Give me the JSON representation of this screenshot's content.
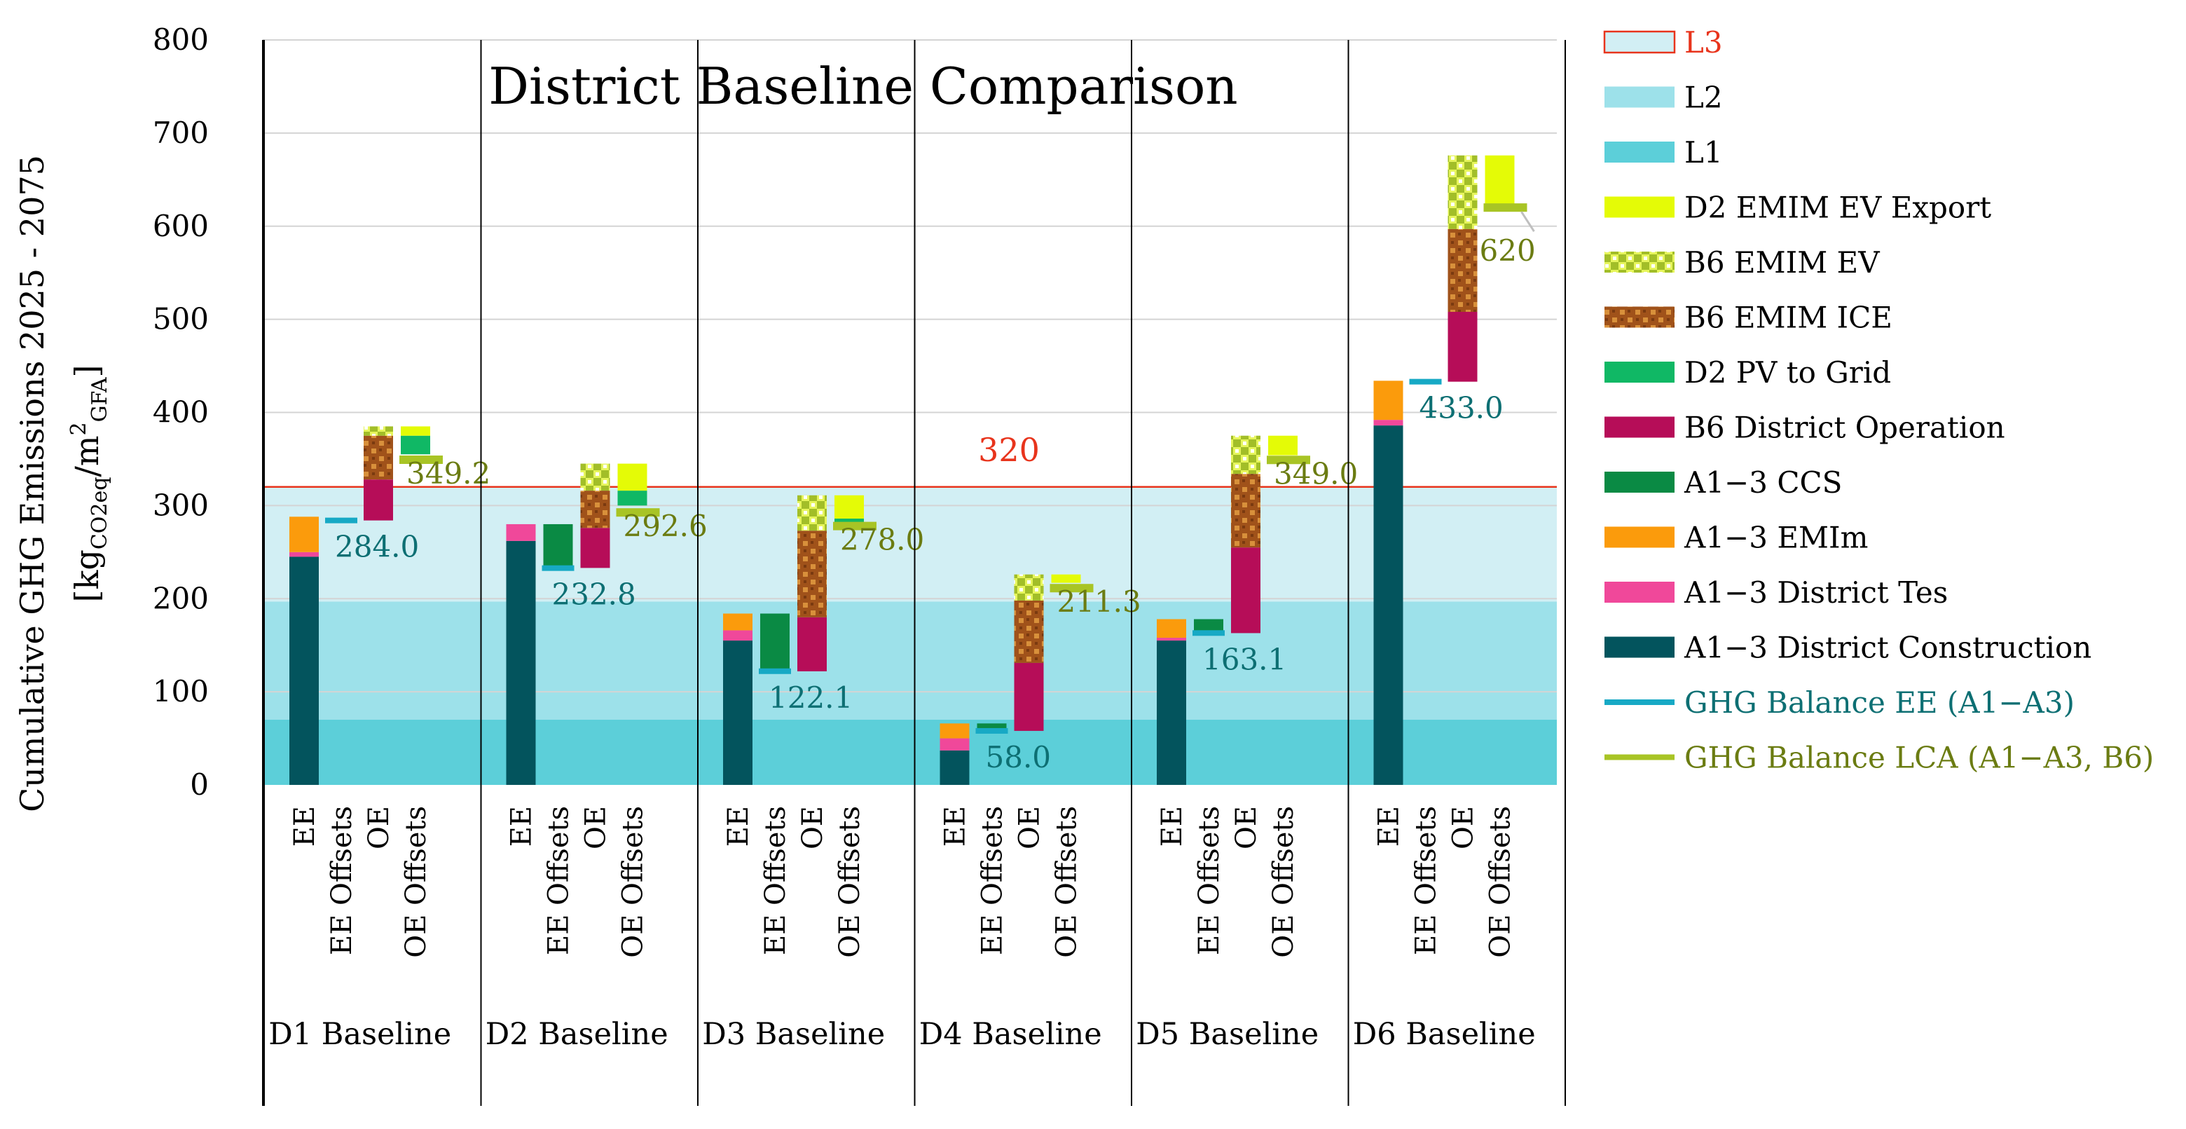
{
  "chart_data": {
    "type": "bar",
    "subtype": "stacked-waterfall",
    "title": "District Baseline Comparison",
    "ylabel_main": "Cumulative GHG Emissions 2025 - 2075",
    "ylabel_unit": {
      "open": "[kg",
      "sub1": "CO2eq",
      "mid": "/m",
      "sup": "2",
      "sub2": "GFA",
      "close": "]"
    },
    "ylim": [
      0,
      800
    ],
    "yticks": [
      0,
      100,
      200,
      300,
      400,
      500,
      600,
      700,
      800
    ],
    "bands": [
      {
        "name": "L1",
        "from": 0,
        "to": 70,
        "color": "#5ccfd9"
      },
      {
        "name": "L2",
        "from": 70,
        "to": 197,
        "color": "#9de1ea"
      },
      {
        "name": "L3",
        "from": 197,
        "to": 320,
        "color": "#d2eff4"
      }
    ],
    "threshold": {
      "value": 320,
      "label": "320",
      "color": "#e8341c"
    },
    "bar_labels": [
      "EE",
      "EE Offsets",
      "OE",
      "OE Offsets"
    ],
    "districts": [
      {
        "name": "D1 Baseline",
        "ee": [
          {
            "cat": "construction",
            "from": 0,
            "to": 245
          },
          {
            "cat": "tes",
            "from": 245,
            "to": 250
          },
          {
            "cat": "emim",
            "from": 250,
            "to": 288
          }
        ],
        "ee_offsets": [],
        "ghg_ee": {
          "value": 284,
          "label": "284.0"
        },
        "oe": [
          {
            "cat": "operation",
            "from": 284,
            "to": 328
          },
          {
            "cat": "ice",
            "from": 328,
            "to": 375
          },
          {
            "cat": "ev",
            "from": 375,
            "to": 385
          }
        ],
        "oe_offsets": [
          {
            "cat": "pv",
            "from": 355,
            "to": 375
          },
          {
            "cat": "d2ev",
            "from": 375,
            "to": 385
          }
        ],
        "ghg_lca": {
          "value": 349.2,
          "label": "349.2"
        }
      },
      {
        "name": "D2 Baseline",
        "ee": [
          {
            "cat": "construction",
            "from": 0,
            "to": 262
          },
          {
            "cat": "tes",
            "from": 262,
            "to": 280
          }
        ],
        "ee_offsets": [
          {
            "cat": "ccs",
            "from": 235,
            "to": 280
          }
        ],
        "ghg_ee": {
          "value": 232.8,
          "label": "232.8"
        },
        "oe": [
          {
            "cat": "operation",
            "from": 233,
            "to": 276
          },
          {
            "cat": "ice",
            "from": 276,
            "to": 316
          },
          {
            "cat": "ev",
            "from": 316,
            "to": 345
          }
        ],
        "oe_offsets": [
          {
            "cat": "pv",
            "from": 300,
            "to": 316
          },
          {
            "cat": "d2ev",
            "from": 316,
            "to": 345
          }
        ],
        "ghg_lca": {
          "value": 292.6,
          "label": "292.6"
        }
      },
      {
        "name": "D3 Baseline",
        "ee": [
          {
            "cat": "construction",
            "from": 0,
            "to": 155
          },
          {
            "cat": "tes",
            "from": 155,
            "to": 166
          },
          {
            "cat": "emim",
            "from": 166,
            "to": 184
          }
        ],
        "ee_offsets": [
          {
            "cat": "ccs",
            "from": 124,
            "to": 184
          }
        ],
        "ghg_ee": {
          "value": 122.1,
          "label": "122.1"
        },
        "oe": [
          {
            "cat": "operation",
            "from": 122,
            "to": 180
          },
          {
            "cat": "ice",
            "from": 180,
            "to": 273
          },
          {
            "cat": "ev",
            "from": 273,
            "to": 311
          }
        ],
        "oe_offsets": [
          {
            "cat": "pv",
            "from": 282,
            "to": 286
          },
          {
            "cat": "d2ev",
            "from": 286,
            "to": 311
          }
        ],
        "ghg_lca": {
          "value": 278,
          "label": "278.0"
        }
      },
      {
        "name": "D4 Baseline",
        "ee": [
          {
            "cat": "construction",
            "from": 0,
            "to": 37
          },
          {
            "cat": "tes",
            "from": 37,
            "to": 50
          },
          {
            "cat": "emim",
            "from": 50,
            "to": 66
          }
        ],
        "ee_offsets": [
          {
            "cat": "ccs",
            "from": 58,
            "to": 66
          }
        ],
        "ghg_ee": {
          "value": 58,
          "label": "58.0"
        },
        "oe": [
          {
            "cat": "operation",
            "from": 58,
            "to": 131
          },
          {
            "cat": "ice",
            "from": 131,
            "to": 198
          },
          {
            "cat": "ev",
            "from": 198,
            "to": 226
          }
        ],
        "oe_offsets": [
          {
            "cat": "d2ev",
            "from": 217,
            "to": 226
          }
        ],
        "ghg_lca": {
          "value": 211.3,
          "label": "211.3"
        }
      },
      {
        "name": "D5 Baseline",
        "ee": [
          {
            "cat": "construction",
            "from": 0,
            "to": 155
          },
          {
            "cat": "tes",
            "from": 155,
            "to": 158
          },
          {
            "cat": "emim",
            "from": 158,
            "to": 178
          }
        ],
        "ee_offsets": [
          {
            "cat": "ccs",
            "from": 163,
            "to": 178
          }
        ],
        "ghg_ee": {
          "value": 163.1,
          "label": "163.1"
        },
        "oe": [
          {
            "cat": "operation",
            "from": 163,
            "to": 255
          },
          {
            "cat": "ice",
            "from": 255,
            "to": 334
          },
          {
            "cat": "ev",
            "from": 334,
            "to": 375
          }
        ],
        "oe_offsets": [
          {
            "cat": "d2ev",
            "from": 354,
            "to": 375
          }
        ],
        "ghg_lca": {
          "value": 349,
          "label": "349.0"
        }
      },
      {
        "name": "D6 Baseline",
        "ee": [
          {
            "cat": "construction",
            "from": 0,
            "to": 386
          },
          {
            "cat": "tes",
            "from": 386,
            "to": 392
          },
          {
            "cat": "emim",
            "from": 392,
            "to": 434
          }
        ],
        "ee_offsets": [],
        "ghg_ee": {
          "value": 433,
          "label": "433.0"
        },
        "oe": [
          {
            "cat": "operation",
            "from": 433,
            "to": 508
          },
          {
            "cat": "ice",
            "from": 508,
            "to": 597
          },
          {
            "cat": "ev",
            "from": 597,
            "to": 676
          }
        ],
        "oe_offsets": [
          {
            "cat": "d2ev",
            "from": 620,
            "to": 676
          }
        ],
        "ghg_lca": {
          "value": 620,
          "label": "620"
        }
      }
    ],
    "colors": {
      "construction": "#03545d",
      "tes": "#f0489a",
      "emim": "#fb9b0c",
      "ccs": "#0a8a44",
      "operation": "#b60d58",
      "pv": "#10b865",
      "ice_base": "#a0521a",
      "ice_dot": "#d8903b",
      "ev_base": "#e6f55c",
      "ev_dot": "#a2be28",
      "d2ev": "#e4fb06",
      "ghg_ee": "#17a9c5",
      "ghg_lca": "#a8c425",
      "label_ee": "#0d6f73",
      "label_lca": "#6b7c12",
      "threshold": "#e8341c"
    },
    "legend": [
      {
        "key": "l3",
        "label": "L3",
        "color": "#e8341c"
      },
      {
        "key": "l2",
        "label": "L2"
      },
      {
        "key": "l1",
        "label": "L1"
      },
      {
        "key": "d2ev",
        "label": "D2 EMIM EV Export"
      },
      {
        "key": "ev",
        "label": "B6 EMIM EV"
      },
      {
        "key": "ice",
        "label": "B6 EMIM ICE"
      },
      {
        "key": "pv",
        "label": "D2 PV to Grid"
      },
      {
        "key": "operation",
        "label": "B6 District Operation"
      },
      {
        "key": "ccs",
        "label": "A1−3 CCS"
      },
      {
        "key": "emim",
        "label": "A1−3 EMIm"
      },
      {
        "key": "tes",
        "label": "A1−3 District Tes"
      },
      {
        "key": "construction",
        "label": "A1−3 District Construction"
      },
      {
        "key": "ghg_ee",
        "label": "GHG Balance EE (A1−A3)",
        "color": "#0d6f73"
      },
      {
        "key": "ghg_lca",
        "label": "GHG Balance LCA (A1−A3, B6)",
        "color": "#6b7c12"
      }
    ]
  }
}
